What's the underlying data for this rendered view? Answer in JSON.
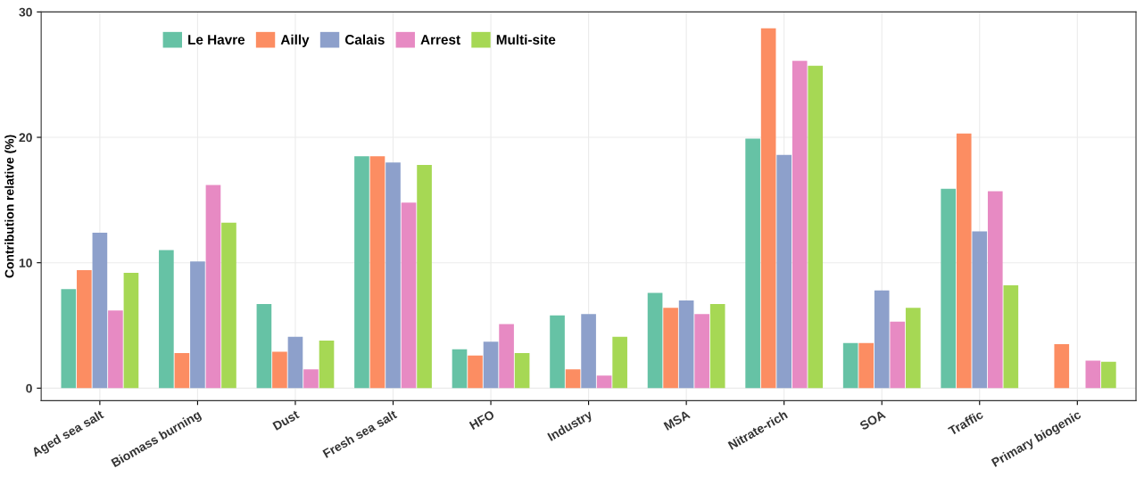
{
  "chart_data": {
    "type": "bar",
    "ylabel": "Contribution relative (%)",
    "categories": [
      "Aged sea salt",
      "Biomass burning",
      "Dust",
      "Fresh sea salt",
      "HFO",
      "Industry",
      "MSA",
      "Nitrate-rich",
      "SOA",
      "Traffic",
      "Primary biogenic"
    ],
    "series": [
      {
        "name": "Le Havre",
        "color": "#66c2a5",
        "values": [
          7.9,
          11.0,
          6.7,
          18.5,
          3.1,
          5.8,
          7.6,
          19.9,
          3.6,
          15.9,
          null
        ]
      },
      {
        "name": "Ailly",
        "color": "#fc8d62",
        "values": [
          9.4,
          2.8,
          2.9,
          18.5,
          2.6,
          1.5,
          6.4,
          28.7,
          3.6,
          20.3,
          3.5
        ]
      },
      {
        "name": "Calais",
        "color": "#8da0cb",
        "values": [
          12.4,
          10.1,
          4.1,
          18.0,
          3.7,
          5.9,
          7.0,
          18.6,
          7.8,
          12.5,
          null
        ]
      },
      {
        "name": "Arrest",
        "color": "#e78ac3",
        "values": [
          6.2,
          16.2,
          1.5,
          14.8,
          5.1,
          1.0,
          5.9,
          26.1,
          5.3,
          15.7,
          2.2
        ]
      },
      {
        "name": "Multi-site",
        "color": "#a6d854",
        "values": [
          9.2,
          13.2,
          3.8,
          17.8,
          2.8,
          4.1,
          6.7,
          25.7,
          6.4,
          8.2,
          2.1
        ]
      }
    ],
    "ylim": [
      -1,
      30
    ],
    "yticks": [
      0,
      10,
      20,
      30
    ],
    "grid": true,
    "legend": "top left"
  }
}
